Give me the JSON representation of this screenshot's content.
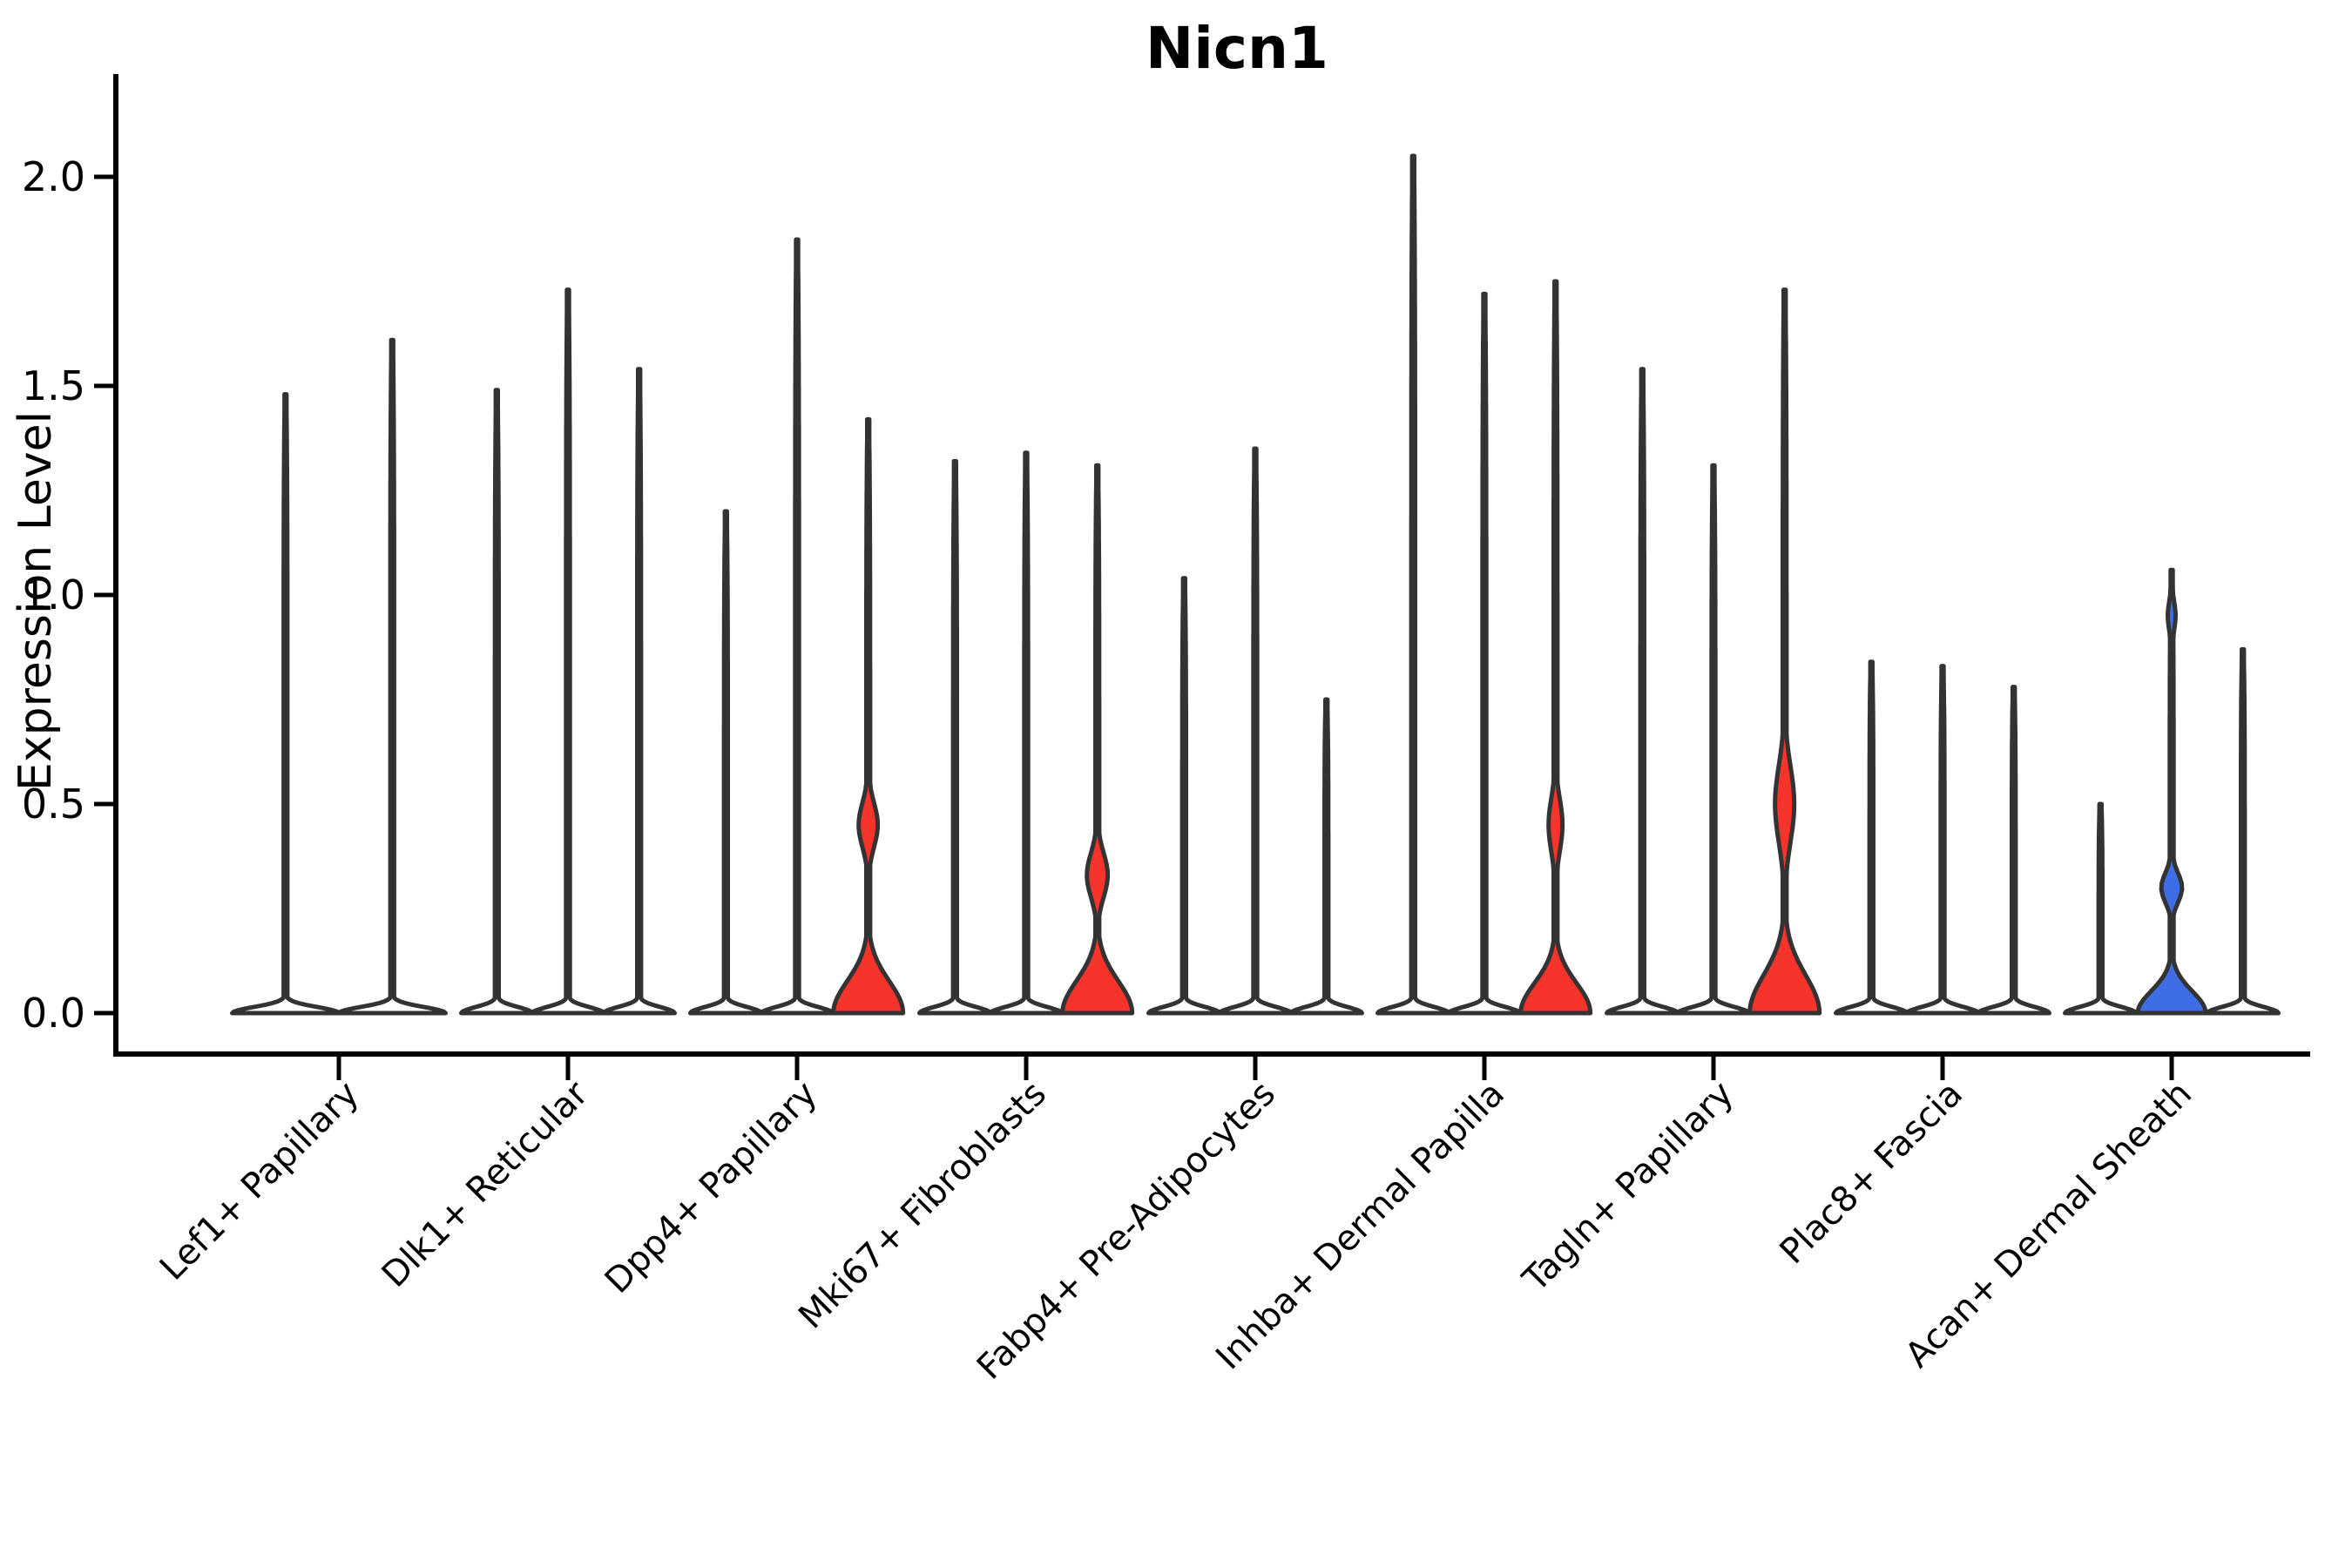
{
  "chart_data": {
    "type": "violin",
    "title": "Nicn1",
    "ylabel": "Expression Level",
    "xlabel": "",
    "yticks": [
      "2.0",
      "1.5",
      "1.0",
      "0.5",
      "0.0"
    ],
    "ylim": [
      -0.13,
      2.25
    ],
    "grid": false,
    "legend": false,
    "colors": {
      "red": "#f6342c",
      "blue": "#3e6de6",
      "edge": "#333333",
      "axis": "#000000",
      "background": "#ffffff"
    },
    "groups": [
      {
        "label": "Lef1+ Papillary",
        "violins": [
          {
            "max": 1.48,
            "fill": "white"
          },
          {
            "max": 1.61,
            "fill": "white"
          }
        ]
      },
      {
        "label": "Dlk1+ Reticular",
        "violins": [
          {
            "max": 1.49,
            "fill": "white"
          },
          {
            "max": 1.73,
            "fill": "white"
          },
          {
            "max": 1.54,
            "fill": "white"
          }
        ]
      },
      {
        "label": "Dpp4+ Papillary",
        "violins": [
          {
            "max": 1.2,
            "fill": "white"
          },
          {
            "max": 1.85,
            "fill": "white"
          },
          {
            "max": 1.42,
            "fill": "red",
            "base": {
              "half_width": 40,
              "height": 0.16
            },
            "bulges": [
              {
                "center": 0.45,
                "half_width": 11,
                "sigma": 0.075
              }
            ]
          }
        ]
      },
      {
        "label": "Mki67+ Fibroblasts",
        "violins": [
          {
            "max": 1.32,
            "fill": "white"
          },
          {
            "max": 1.34,
            "fill": "white"
          },
          {
            "max": 1.31,
            "fill": "red",
            "base": {
              "half_width": 40,
              "height": 0.16
            },
            "bulges": [
              {
                "center": 0.33,
                "half_width": 12,
                "sigma": 0.075
              }
            ]
          }
        ]
      },
      {
        "label": "Fabp4+ Pre-Adipocytes",
        "violins": [
          {
            "max": 1.04,
            "fill": "white"
          },
          {
            "max": 1.35,
            "fill": "white"
          },
          {
            "max": 0.75,
            "fill": "white"
          }
        ]
      },
      {
        "label": "Inhba+ Dermal Papilla",
        "violins": [
          {
            "max": 2.05,
            "fill": "white"
          },
          {
            "max": 1.72,
            "fill": "white"
          },
          {
            "max": 1.75,
            "fill": "red",
            "base": {
              "half_width": 40,
              "height": 0.15
            },
            "bulges": [
              {
                "center": 0.45,
                "half_width": 8,
                "sigma": 0.09
              }
            ]
          }
        ]
      },
      {
        "label": "Tagln+ Papillary",
        "violins": [
          {
            "max": 1.54,
            "fill": "white"
          },
          {
            "max": 1.31,
            "fill": "white"
          },
          {
            "max": 1.73,
            "fill": "red",
            "base": {
              "half_width": 40,
              "height": 0.19
            },
            "bulges": [
              {
                "center": 0.5,
                "half_width": 11,
                "sigma": 0.13
              }
            ]
          }
        ]
      },
      {
        "label": "Plac8+ Fascia",
        "violins": [
          {
            "max": 0.84,
            "fill": "white"
          },
          {
            "max": 0.83,
            "fill": "white"
          },
          {
            "max": 0.78,
            "fill": "white"
          }
        ]
      },
      {
        "label": "Acan+ Dermal Sheath",
        "violins": [
          {
            "max": 0.5,
            "fill": "white"
          },
          {
            "max": 1.06,
            "fill": "blue",
            "base": {
              "half_width": 39,
              "height": 0.11
            },
            "bulges": [
              {
                "center": 0.3,
                "half_width": 12,
                "sigma": 0.05
              },
              {
                "center": 0.95,
                "half_width": 4.5,
                "sigma": 0.05
              }
            ]
          },
          {
            "max": 0.87,
            "fill": "white"
          }
        ]
      }
    ]
  }
}
